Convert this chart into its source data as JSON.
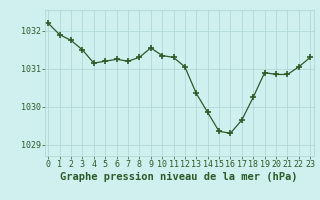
{
  "x": [
    0,
    1,
    2,
    3,
    4,
    5,
    6,
    7,
    8,
    9,
    10,
    11,
    12,
    13,
    14,
    15,
    16,
    17,
    18,
    19,
    20,
    21,
    22,
    23
  ],
  "y": [
    1032.2,
    1031.9,
    1031.75,
    1031.5,
    1031.15,
    1031.2,
    1031.25,
    1031.2,
    1031.3,
    1031.55,
    1031.35,
    1031.3,
    1031.05,
    1030.35,
    1029.85,
    1029.35,
    1029.3,
    1029.65,
    1030.25,
    1030.9,
    1030.85,
    1030.85,
    1031.05,
    1031.3
  ],
  "line_color": "#2d5a27",
  "marker_color": "#2d5a27",
  "bg_color": "#d0f0f0",
  "grid_color": "#b0d8d8",
  "xlabel": "Graphe pression niveau de la mer (hPa)",
  "xlabel_fontsize": 7.5,
  "tick_fontsize": 6.0,
  "yticks": [
    1029,
    1030,
    1031,
    1032
  ],
  "xticks": [
    0,
    1,
    2,
    3,
    4,
    5,
    6,
    7,
    8,
    9,
    10,
    11,
    12,
    13,
    14,
    15,
    16,
    17,
    18,
    19,
    20,
    21,
    22,
    23
  ],
  "ylim": [
    1028.7,
    1032.55
  ],
  "xlim": [
    -0.3,
    23.3
  ]
}
